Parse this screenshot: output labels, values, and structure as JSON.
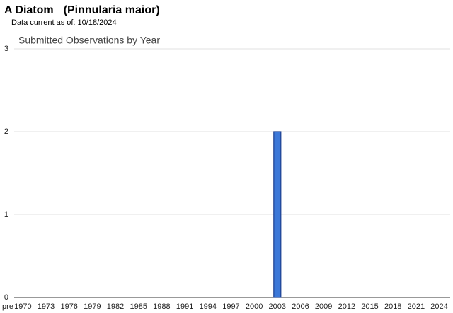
{
  "header": {
    "title": "A Diatom",
    "scientific_name": "(Pinnularia maior)",
    "data_note": "Data current as of: 10/18/2024"
  },
  "chart_data": {
    "type": "bar",
    "title": "Submitted Observations by Year",
    "categories": [
      "pre",
      "1970",
      null,
      null,
      "1973",
      null,
      null,
      "1976",
      null,
      null,
      "1979",
      null,
      null,
      "1982",
      null,
      null,
      "1985",
      null,
      null,
      "1988",
      null,
      null,
      "1991",
      null,
      null,
      "1994",
      null,
      null,
      "1997",
      null,
      null,
      "2000",
      null,
      null,
      "2003",
      null,
      null,
      "2006",
      null,
      null,
      "2009",
      null,
      null,
      "2012",
      null,
      null,
      "2015",
      null,
      null,
      "2018",
      null,
      null,
      "2021",
      null,
      null,
      "2024"
    ],
    "values": [
      0,
      0,
      0,
      0,
      0,
      0,
      0,
      0,
      0,
      0,
      0,
      0,
      0,
      0,
      0,
      0,
      0,
      0,
      0,
      0,
      0,
      0,
      0,
      0,
      0,
      0,
      0,
      0,
      0,
      0,
      0,
      0,
      0,
      0,
      2,
      0,
      0,
      0,
      0,
      0,
      0,
      0,
      0,
      0,
      0,
      0,
      0,
      0,
      0,
      0,
      0,
      0,
      0,
      0,
      0,
      0
    ],
    "color": "#3c78d8",
    "border_color": "#1c3f8f",
    "ylim": [
      0,
      3
    ],
    "yticks": [
      0,
      1,
      2,
      3
    ],
    "grid": true
  }
}
